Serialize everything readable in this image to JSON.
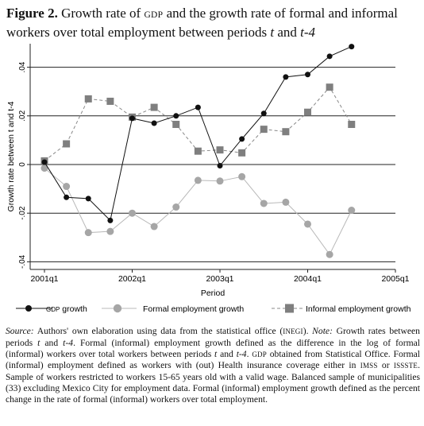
{
  "figure": {
    "label": "Figure 2.",
    "title_part1": "Growth rate of",
    "title_gdp": "GDP",
    "title_part2": "and the growth rate of formal and informal workers over total employment between periods",
    "title_t": "t",
    "title_and": "and",
    "title_t4": "t-4"
  },
  "chart_data": {
    "type": "line",
    "xlabel": "Period",
    "ylabel": "Growth rate between t and t-4",
    "x_ticks": [
      "2001q1",
      "2002q1",
      "2003q1",
      "2004q1",
      "2005q1"
    ],
    "y_ticks": [
      "-.04",
      "-.02",
      "0",
      ".02",
      ".04"
    ],
    "ylim": [
      -0.042,
      0.05
    ],
    "x": [
      "2001q1",
      "2001q2",
      "2001q3",
      "2001q4",
      "2002q1",
      "2002q2",
      "2002q3",
      "2002q4",
      "2003q1",
      "2003q2",
      "2003q3",
      "2003q4",
      "2004q1",
      "2004q2",
      "2004q3",
      "2004q4"
    ],
    "grid": "horizontal",
    "legend_position": "bottom",
    "series": [
      {
        "name": "GDP growth",
        "name_prefix": "GDP",
        "name_suffix": "growth",
        "marker": "circle",
        "line": "solid",
        "line_color": "#111111",
        "marker_color": "#111111",
        "values": [
          0.001,
          -0.0135,
          -0.014,
          -0.023,
          0.019,
          0.017,
          0.02,
          0.0235,
          -0.0005,
          0.0105,
          0.021,
          0.036,
          0.037,
          0.0445,
          0.0485,
          null
        ]
      },
      {
        "name": "Formal employment growth",
        "marker": "circle",
        "line": "solid",
        "line_color": "#b8b8b8",
        "marker_color": "#a6a6a6",
        "values": [
          -0.0015,
          -0.009,
          -0.028,
          -0.0275,
          -0.02,
          -0.0255,
          -0.0175,
          -0.0065,
          -0.0068,
          -0.005,
          -0.016,
          -0.0155,
          -0.0245,
          -0.037,
          -0.0188,
          null
        ]
      },
      {
        "name": "Informal employment growth",
        "marker": "square",
        "line": "dashed",
        "line_color": "#888888",
        "marker_color": "#7f7f7f",
        "values": [
          0.0015,
          0.0085,
          0.027,
          0.026,
          0.0195,
          0.0235,
          0.0165,
          0.0055,
          0.006,
          0.0048,
          0.0145,
          0.0135,
          0.0215,
          0.0318,
          0.0165,
          null
        ]
      }
    ]
  },
  "source": {
    "source_label": "Source:",
    "source_text": "Authors' own elaboration using data from the statistical office (",
    "inegi": "INEGI",
    "after_inegi": ").",
    "note_label": "Note:",
    "note_1": "Growth rates between periods",
    "note_t": "t",
    "note_and": "and",
    "note_t4": "t-4",
    "note_2": ". Formal (informal) employment growth defined as the difference in the log of formal (informal) workers over total workers between periods",
    "note_t_b": "t",
    "note_and_b": "and",
    "note_t4_b": "t-4",
    "note_3": ".",
    "gdp": "GDP",
    "note_4": "obtained from Statistical Office. Formal (informal) employment defined as workers with (out) Health insurance coverage either in",
    "imss": "IMSS",
    "or": "or",
    "issste": "ISSSTE",
    "note_5": ". Sample of workers restricted to workers 15-65 years old with a valid wage. Balanced sample of municipalities (33) excluding Mexico City for employment data. Formal (informal) employment growth defined as the percent change in the rate of formal (informal) workers over total employment."
  }
}
